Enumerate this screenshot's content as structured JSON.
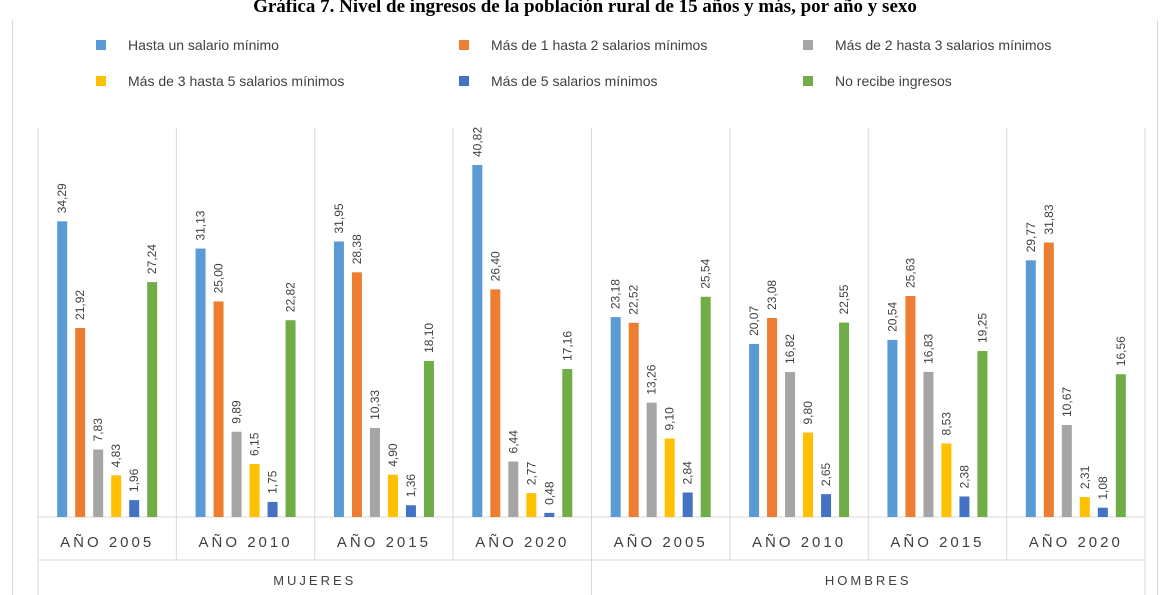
{
  "title": "Gráfica 7. Nivel de ingresos de la población rural de 15 años y más, por año y sexo",
  "chart_data": {
    "type": "bar",
    "title": "Gráfica 7. Nivel de ingresos de la población rural de 15 años y más, por año y sexo",
    "xlabel": "",
    "ylabel": "",
    "ylim": [
      0,
      45
    ],
    "grid": false,
    "legend_position": "top",
    "groups": [
      {
        "name": "MUJERES",
        "categories": [
          "AÑO 2005",
          "AÑO 2010",
          "AÑO 2015",
          "AÑO 2020"
        ]
      },
      {
        "name": "HOMBRES",
        "categories": [
          "AÑO 2005",
          "AÑO 2010",
          "AÑO 2015",
          "AÑO 2020"
        ]
      }
    ],
    "categories": [
      "AÑO 2005",
      "AÑO 2010",
      "AÑO 2015",
      "AÑO 2020",
      "AÑO 2005",
      "AÑO 2010",
      "AÑO 2015",
      "AÑO 2020"
    ],
    "series": [
      {
        "name": "Hasta un salario mínimo",
        "color": "#5b9bd5",
        "values": [
          34.29,
          31.13,
          31.95,
          40.82,
          23.18,
          20.07,
          20.54,
          29.77
        ],
        "labels": [
          "34,29",
          "31,13",
          "31,95",
          "40,82",
          "23,18",
          "20,07",
          "20,54",
          "29,77"
        ]
      },
      {
        "name": "Más de 1 hasta 2 salarios mínimos",
        "color": "#ed7d31",
        "values": [
          21.92,
          25.0,
          28.38,
          26.4,
          22.52,
          23.08,
          25.63,
          31.83
        ],
        "labels": [
          "21,92",
          "25,00",
          "28,38",
          "26,40",
          "22,52",
          "23,08",
          "25,63",
          "31,83"
        ]
      },
      {
        "name": "Más de 2 hasta 3 salarios mínimos",
        "color": "#a5a5a5",
        "values": [
          7.83,
          9.89,
          10.33,
          6.44,
          13.26,
          16.82,
          16.83,
          10.67
        ],
        "labels": [
          "7,83",
          "9,89",
          "10,33",
          "6,44",
          "13,26",
          "16,82",
          "16,83",
          "10,67"
        ]
      },
      {
        "name": "Más de 3 hasta 5 salarios mínimos",
        "color": "#ffc000",
        "values": [
          4.83,
          6.15,
          4.9,
          2.77,
          9.1,
          9.8,
          8.53,
          2.31
        ],
        "labels": [
          "4,83",
          "6,15",
          "4,90",
          "2,77",
          "9,10",
          "9,80",
          "8,53",
          "2,31"
        ]
      },
      {
        "name": "Más de 5 salarios mínimos",
        "color": "#4472c4",
        "values": [
          1.96,
          1.75,
          1.36,
          0.48,
          2.84,
          2.65,
          2.38,
          1.08
        ],
        "labels": [
          "1,96",
          "1,75",
          "1,36",
          "0,48",
          "2,84",
          "2,65",
          "2,38",
          "1,08"
        ]
      },
      {
        "name": "No recibe ingresos",
        "color": "#70ad47",
        "values": [
          27.24,
          22.82,
          18.1,
          17.16,
          25.54,
          22.55,
          19.25,
          16.56
        ],
        "labels": [
          "27,24",
          "22,82",
          "18,10",
          "17,16",
          "25,54",
          "22,55",
          "19,25",
          "16,56"
        ]
      }
    ]
  }
}
